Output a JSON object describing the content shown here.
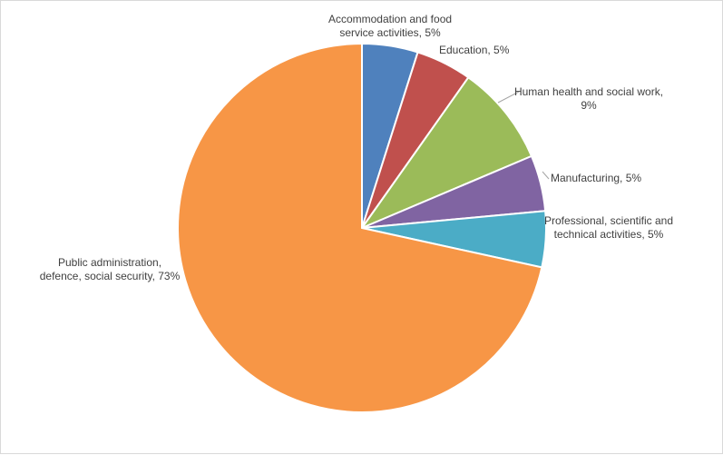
{
  "chart_data": {
    "type": "pie",
    "title": "",
    "legend": "none",
    "slices": [
      {
        "name": "Accommodation and food service activities",
        "value": 5,
        "color": "#4f81bd",
        "label_lines": [
          "Accommodation and food",
          "service activities, 5%"
        ]
      },
      {
        "name": "Education",
        "value": 5,
        "color": "#c0504d",
        "label_lines": [
          "Education, 5%"
        ]
      },
      {
        "name": "Human health and social work",
        "value": 9,
        "color": "#9bbb59",
        "label_lines": [
          "Human health and social work,",
          "9%"
        ]
      },
      {
        "name": "Manufacturing",
        "value": 5,
        "color": "#8064a2",
        "label_lines": [
          "Manufacturing, 5%"
        ]
      },
      {
        "name": "Professional, scientific and technical activities",
        "value": 5,
        "color": "#4bacc6",
        "label_lines": [
          "Professional, scientific and",
          "technical activities, 5%"
        ]
      },
      {
        "name": "Public administration, defence, social security",
        "value": 73,
        "color": "#f79646",
        "label_lines": [
          "Public administration,",
          "defence, social security, 73%"
        ]
      }
    ]
  }
}
